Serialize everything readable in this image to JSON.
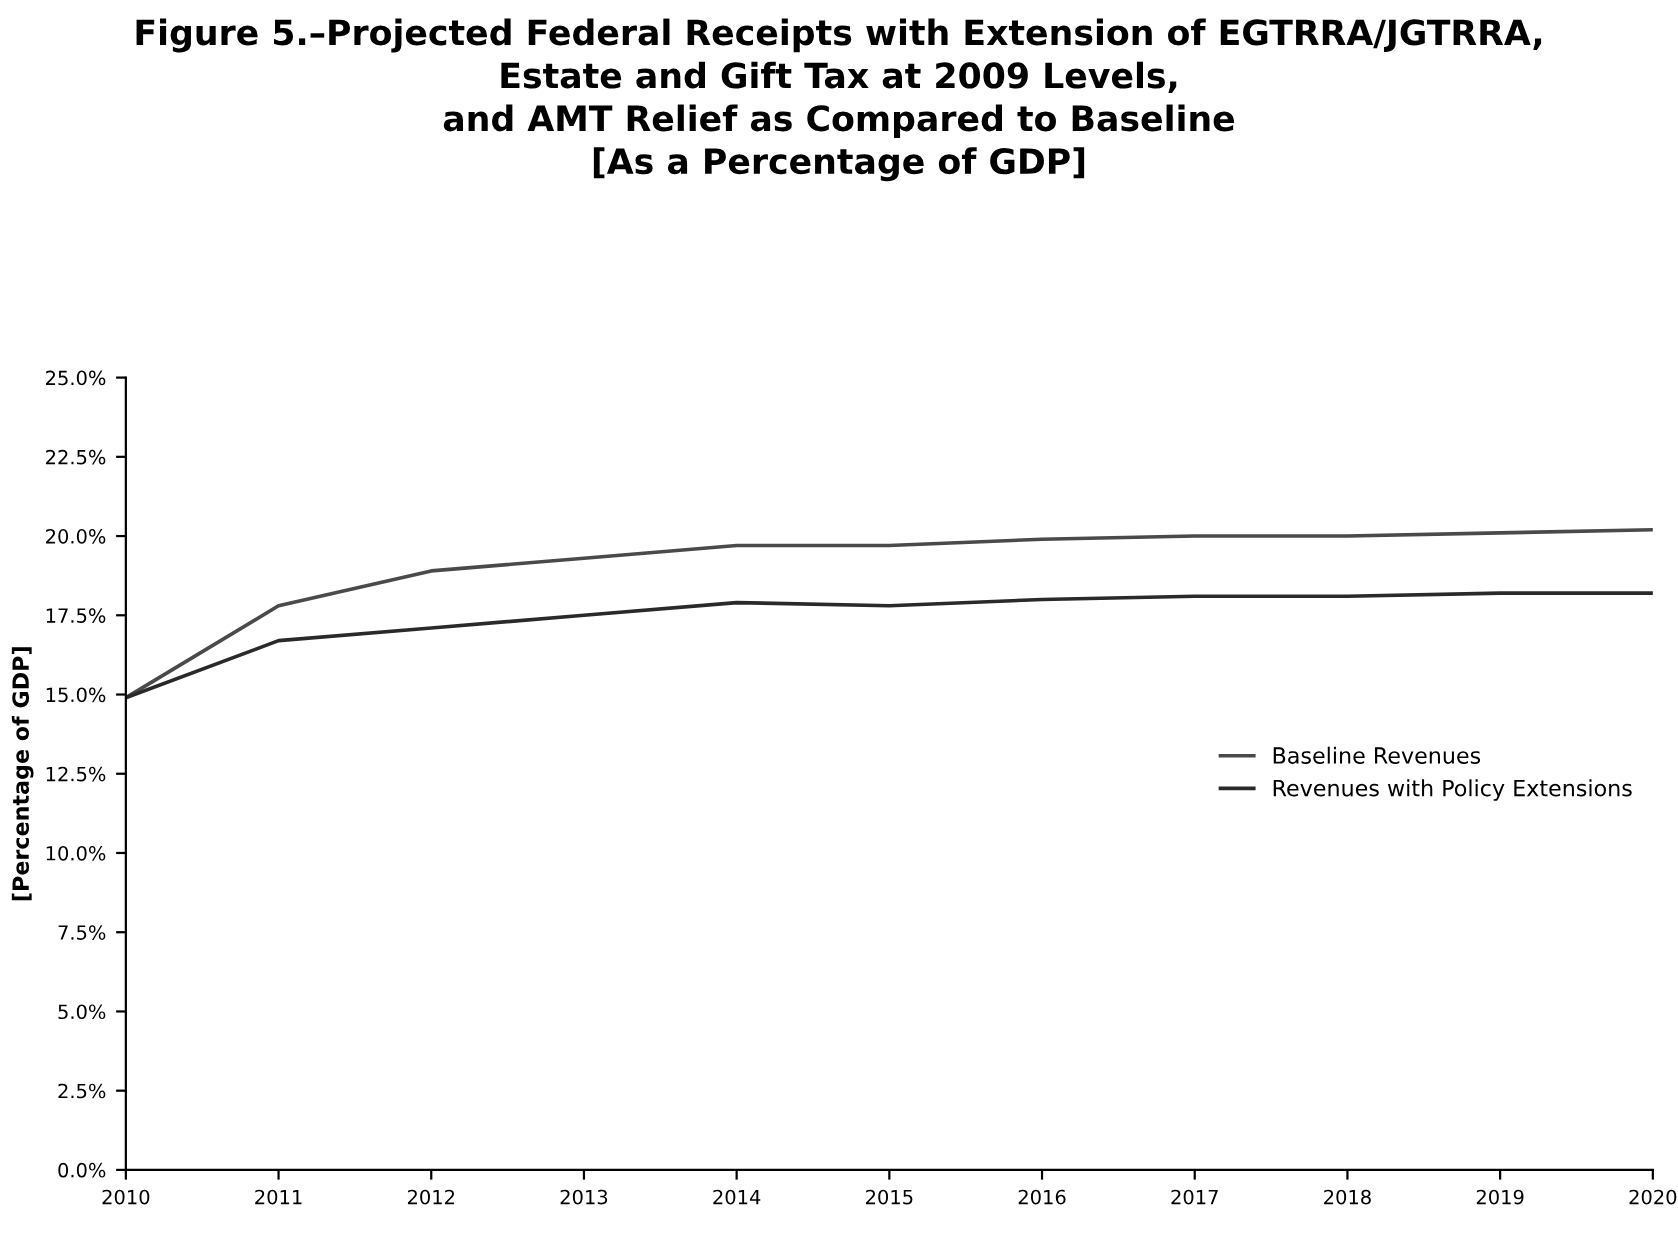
{
  "chart_data": {
    "type": "line",
    "title": "Figure 5.–Projected Federal Receipts with Extension of EGTRRA/JGTRRA,\nEstate and Gift Tax at 2009 Levels,\nand AMT Relief as Compared to Baseline\n[As a Percentage of GDP]",
    "ylabel": "[Percentage of GDP]",
    "x": [
      2010,
      2011,
      2012,
      2013,
      2014,
      2015,
      2016,
      2017,
      2018,
      2019,
      2020
    ],
    "series": [
      {
        "name": "Baseline Revenues",
        "color": "#4a4a4a",
        "values": [
          14.9,
          17.8,
          18.9,
          19.3,
          19.7,
          19.7,
          19.9,
          20.0,
          20.0,
          20.1,
          20.2
        ]
      },
      {
        "name": "Revenues with Policy Extensions",
        "color": "#2a2a2a",
        "values": [
          14.9,
          16.7,
          17.1,
          17.5,
          17.9,
          17.8,
          18.0,
          18.1,
          18.1,
          18.2,
          18.2
        ]
      }
    ],
    "xlim": [
      2010,
      2020
    ],
    "xticks": [
      2010,
      2011,
      2012,
      2013,
      2014,
      2015,
      2016,
      2017,
      2018,
      2019,
      2020
    ],
    "ylim": [
      0,
      25
    ],
    "yticks": [
      {
        "value": 0,
        "label": "0.0%"
      },
      {
        "value": 2.5,
        "label": "2.5%"
      },
      {
        "value": 5,
        "label": "5.0%"
      },
      {
        "value": 7.5,
        "label": "7.5%"
      },
      {
        "value": 10,
        "label": "10.0%"
      },
      {
        "value": 12.5,
        "label": "12.5%"
      },
      {
        "value": 15,
        "label": "15.0%"
      },
      {
        "value": 17.5,
        "label": "17.5%"
      },
      {
        "value": 20,
        "label": "20.0%"
      },
      {
        "value": 22.5,
        "label": "22.5%"
      },
      {
        "value": 25,
        "label": "25.0%"
      }
    ],
    "legend": "center right",
    "grid": false,
    "marker": "none",
    "line_style": "solid"
  }
}
